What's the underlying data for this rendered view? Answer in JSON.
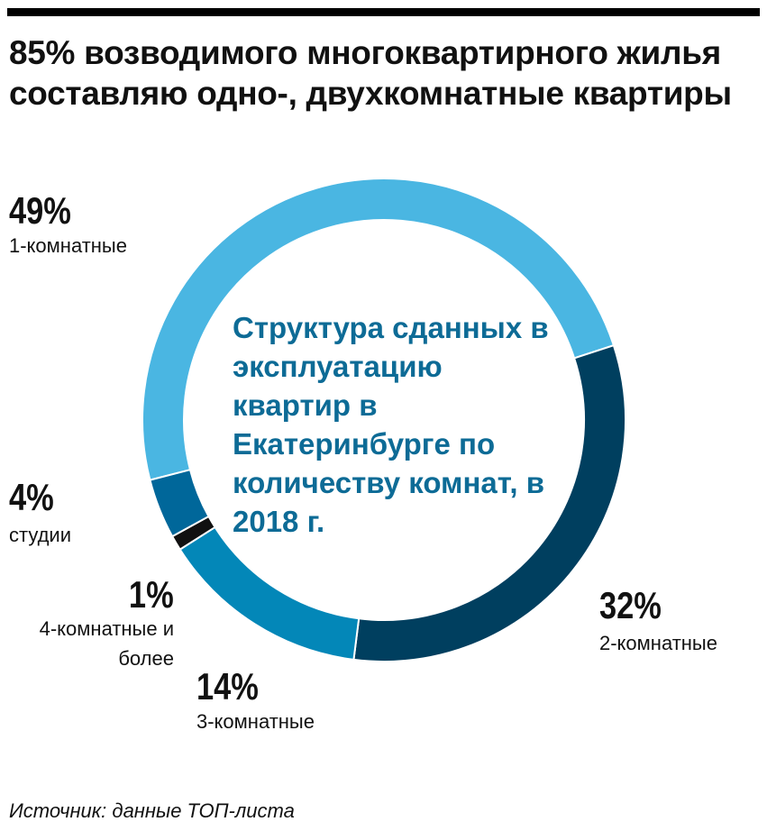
{
  "chart_data": {
    "type": "pie",
    "title": "85% возводимого многоквартирного жилья составляю одно-, двухкомнатные квартиры",
    "center_text": "Структура сданных в эксплуатацию квартир в Екатеринбурге по количеству комнат, в 2018 г.",
    "categories": [
      "1-комнатные",
      "2-комнатные",
      "3-комнатные",
      "4-комнатные и более",
      "студии"
    ],
    "values": [
      49,
      32,
      14,
      1,
      4
    ],
    "value_labels": [
      "49%",
      "32%",
      "14%",
      "1%",
      "4%"
    ],
    "colors": [
      "#4ab6e2",
      "#003f5f",
      "#0387b8",
      "#111111",
      "#00679a"
    ],
    "source": "Источник: данные ТОП-листа"
  }
}
